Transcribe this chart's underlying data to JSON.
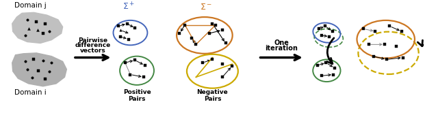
{
  "bg_color": "#ffffff",
  "domain_j_label": "Domain j",
  "domain_i_label": "Domain i",
  "arrow1_label": [
    "Pairwise",
    "difference",
    "vectors"
  ],
  "arrow2_label": [
    "One",
    "iteration"
  ],
  "sigma_plus_label": "Σ⁺",
  "sigma_minus_label": "Σ⁻",
  "positive_pairs_label": "Positive\nPairs",
  "negative_pairs_label": "Negative\nPairs",
  "colors": {
    "blue": "#4466bb",
    "orange": "#cc7722",
    "green": "#448844",
    "yellow": "#ccaa00",
    "black": "#111111"
  }
}
